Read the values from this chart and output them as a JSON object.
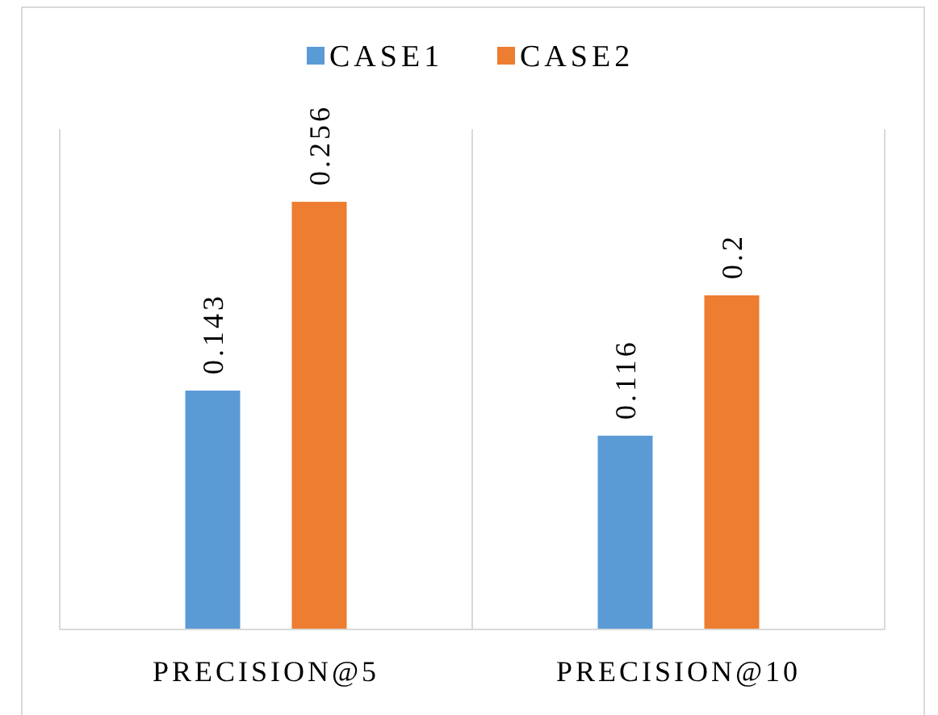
{
  "chart_data": {
    "type": "bar",
    "categories": [
      "PRECISION@5",
      "PRECISION@10"
    ],
    "series": [
      {
        "name": "CASE1",
        "color": "#5b9bd5",
        "values": [
          0.143,
          0.116
        ]
      },
      {
        "name": "CASE2",
        "color": "#ed7d31",
        "values": [
          0.256,
          0.2
        ]
      }
    ],
    "data_labels": true,
    "grid": "x",
    "legend": "top"
  }
}
